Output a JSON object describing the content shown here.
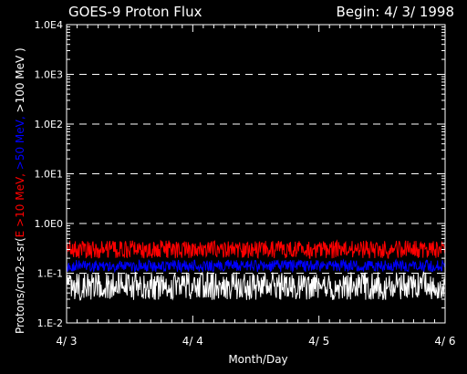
{
  "colors": {
    "background": "#000000",
    "axis": "#ffffff",
    "grid": "#ffffff",
    "series_gt10": "#ff0000",
    "series_gt50": "#0000ff",
    "series_gt100": "#ffffff"
  },
  "chart_data": {
    "type": "line",
    "title": "GOES-9 Proton Flux",
    "begin_label": "Begin: 4/ 3/ 1998",
    "xlabel": "Month/Day",
    "ylabel": {
      "prefix": "Protons/cm2-s-sr(",
      "parts": [
        {
          "text": "E >10 MeV,",
          "color": "#ff0000"
        },
        {
          "text": " >50 MeV,",
          "color": "#0000ff"
        },
        {
          "text": " >100 MeV )",
          "color": "#ffffff"
        }
      ]
    },
    "y_scale": "log",
    "ylim": [
      0.01,
      10000
    ],
    "y_tick_values": [
      0.01,
      0.1,
      1,
      10,
      100,
      1000,
      10000
    ],
    "y_tick_labels": [
      "1.E-2",
      "1.E-1",
      "1.0E0",
      "1.0E1",
      "1.0E2",
      "1.0E3",
      "1.0E4"
    ],
    "x_ticks": [
      "4/ 3",
      "4/ 4",
      "4/ 5",
      "4/ 6"
    ],
    "xlim_days": [
      0,
      3
    ],
    "grid": "horizontal dashed",
    "series": [
      {
        "name": "E >10 MeV",
        "color": "#ff0000",
        "level": 0.3,
        "spread": 0.18
      },
      {
        "name": ">50 MeV",
        "color": "#0000ff",
        "level": 0.14,
        "spread": 0.12
      },
      {
        "name": ">100 MeV",
        "color": "#ffffff",
        "level": 0.055,
        "spread": 0.28
      }
    ]
  }
}
